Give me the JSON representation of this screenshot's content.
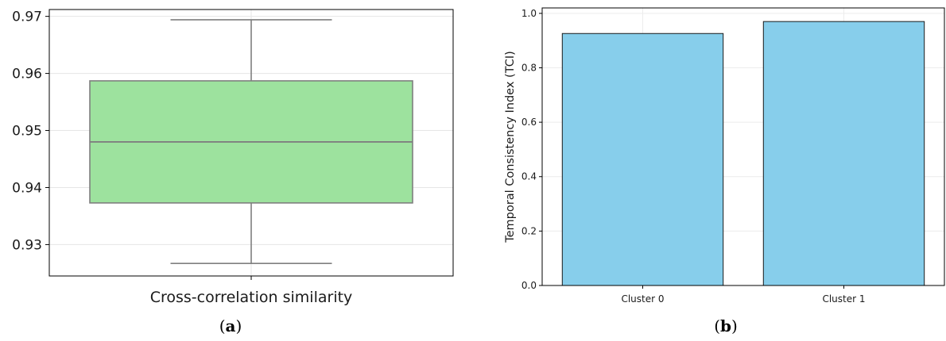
{
  "chart_data": [
    {
      "panel": "(a)",
      "panel_open": "(",
      "panel_letter": "a",
      "panel_close": ")",
      "type": "box",
      "xlabel": "Cross-correlation similarity",
      "ylabel": "",
      "ylim": [
        0.9245,
        0.9712
      ],
      "yticks": [
        0.93,
        0.94,
        0.95,
        0.96,
        0.97
      ],
      "ytick_labels": [
        "0.93",
        "0.94",
        "0.95",
        "0.96",
        "0.97"
      ],
      "box": {
        "whisker_low": 0.9267,
        "q1": 0.9373,
        "median": 0.948,
        "q3": 0.9587,
        "whisker_high": 0.9694
      },
      "grid": true,
      "colors": {
        "box_fill": "#9de29e",
        "box_line": "#7f7f7f"
      }
    },
    {
      "panel": "(b)",
      "panel_open": "(",
      "panel_letter": "b",
      "panel_close": ")",
      "type": "bar",
      "categories": [
        "Cluster 0",
        "Cluster 1"
      ],
      "values": [
        0.926,
        0.97
      ],
      "xlabel": "",
      "ylabel": "Temporal Consistency Index (TCI)",
      "ylim": [
        0,
        1.02
      ],
      "yticks": [
        0.0,
        0.2,
        0.4,
        0.6,
        0.8,
        1.0
      ],
      "ytick_labels": [
        "0.0",
        "0.2",
        "0.4",
        "0.6",
        "0.8",
        "1.0"
      ],
      "grid": true,
      "colors": {
        "bar_fill": "#87ceeb",
        "bar_edge": "#1a1a1a"
      }
    }
  ]
}
